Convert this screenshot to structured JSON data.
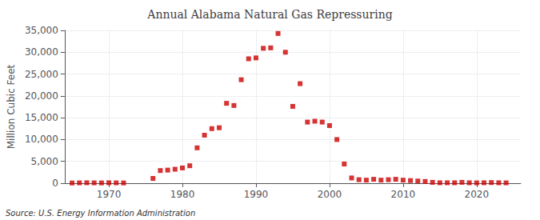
{
  "chart_data": {
    "type": "scatter",
    "title": "Annual Alabama Natural Gas Repressuring",
    "ylabel": "Million Cubic Feet",
    "annotations": [
      "Source: U.S. Energy Information Administration"
    ],
    "color": "#cc0000",
    "marker": "square",
    "grid": true,
    "xlim": [
      1964,
      2026
    ],
    "xticks": [
      1970,
      1980,
      1990,
      2000,
      2010,
      2020
    ],
    "ylim": [
      0,
      35000
    ],
    "yticks": [
      0,
      {
        "value": 5000,
        "label": "5,000"
      },
      {
        "value": 10000,
        "label": "10,000"
      },
      {
        "value": 15000,
        "label": "15,000"
      },
      {
        "value": 20000,
        "label": "20,000"
      },
      {
        "value": 25000,
        "label": "25,000"
      },
      {
        "value": 30000,
        "label": "30,000"
      },
      {
        "value": 35000,
        "label": "35,000"
      }
    ],
    "x": [
      1965,
      1966,
      1967,
      1968,
      1969,
      1970,
      1971,
      1972,
      1976,
      1977,
      1978,
      1979,
      1980,
      1981,
      1982,
      1983,
      1984,
      1985,
      1986,
      1987,
      1988,
      1989,
      1990,
      1991,
      1992,
      1993,
      1994,
      1995,
      1996,
      1997,
      1998,
      1999,
      2000,
      2001,
      2002,
      2003,
      2004,
      2005,
      2006,
      2007,
      2008,
      2009,
      2010,
      2011,
      2012,
      2013,
      2014,
      2015,
      2016,
      2017,
      2018,
      2019,
      2020,
      2021,
      2022,
      2023,
      2024
    ],
    "values": [
      50,
      80,
      100,
      80,
      70,
      100,
      80,
      60,
      1100,
      2900,
      3000,
      3200,
      3500,
      4000,
      8100,
      11000,
      12500,
      12700,
      18300,
      17800,
      23700,
      28500,
      28700,
      30900,
      31000,
      34300,
      30000,
      17600,
      22800,
      14000,
      14200,
      14000,
      13200,
      10000,
      4400,
      1200,
      800,
      700,
      900,
      700,
      800,
      900,
      700,
      600,
      500,
      400,
      200,
      100,
      100,
      100,
      200,
      100,
      80,
      100,
      150,
      100,
      80
    ]
  }
}
